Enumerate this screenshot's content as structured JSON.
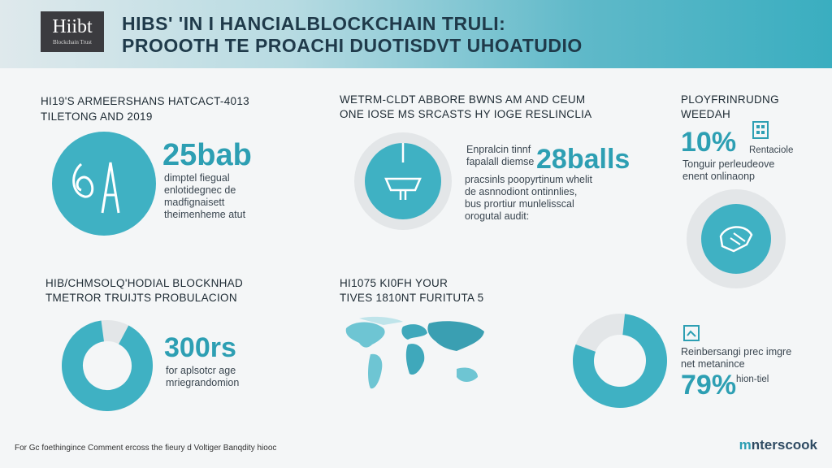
{
  "header": {
    "logo_main": "Hiibt",
    "logo_sub": "Blockchain Trust",
    "title_line1": "HIBS' 'IN I HANCIALBLOCKCHAIN TRULI:",
    "title_line2": "PROOOTH TE PROACHI DUOTISDVT UHOATUDIO"
  },
  "sections": {
    "s1": {
      "title_line1": "HI19'S ARMEERSHANS HATCACT-4013",
      "title_line2": "TILETONG AND 2019",
      "big": "25bab",
      "lines": [
        "dimptel fiegual",
        "enlotidegnec de",
        "madfignaisett",
        "theimenheme atut"
      ]
    },
    "s2": {
      "title_line1": "WETRM-CLDT ABBORE BWNS AM AND CEUM",
      "title_line2": "ONE IOSE MS SRCASTS HY IOGE RESLINCLIA",
      "lines_left": [
        "Enpralcin tinnf",
        "fapalall diemse"
      ],
      "big": "28balls",
      "lines_bottom": [
        "pracsinls poopyrtinum whelit",
        "de asnnodiont ontinnlies,",
        "bus prortiur munlelisscal",
        "orogutal audit:"
      ]
    },
    "s3": {
      "title_line1": "PLOYFRINRUDNG",
      "title_line2": "WEEDAH",
      "big": "10%",
      "side": "Rentaciole",
      "lines": [
        "Tonguir perleudeove",
        "enent onlinaonp"
      ]
    },
    "s4": {
      "title_line1": "HIB/CHMSOLQ'HODIAL BLOCKNHAD",
      "title_line2": "TMETROR TRUIJTS PROBULACION",
      "big": "300rs",
      "lines": [
        "for aplsotcr age",
        "mriegrandomion"
      ]
    },
    "s5": {
      "title_line1": "HI1075 KI0FH YOUR",
      "title_line2": "TIVES 1810NT FURITUTA 5"
    },
    "s6": {
      "lines": [
        "Reinbersangi prec imgre",
        "net metanince"
      ],
      "big": "79%",
      "side": "hion-tiel"
    }
  },
  "footer": {
    "text": "For Gc foethingince Comment ercoss the fieury d Voltiger Banqdity hiooc",
    "brand_prefix": "m",
    "brand_name": "nterscook"
  },
  "colors": {
    "accent": "#2d9fb3",
    "ring_bg": "#e3e6e8"
  }
}
